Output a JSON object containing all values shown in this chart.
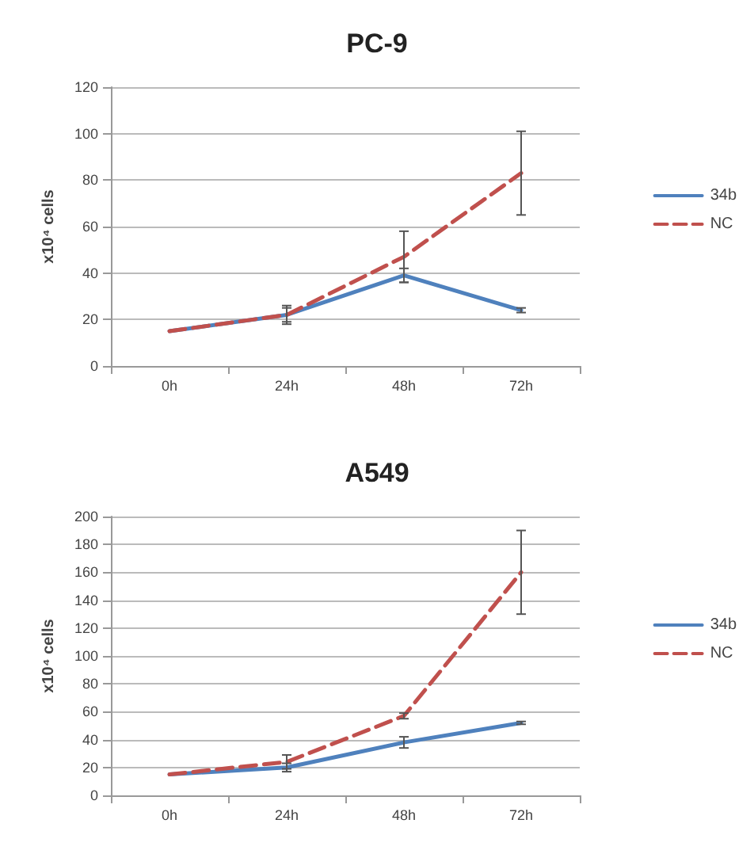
{
  "chart_data": [
    {
      "type": "line",
      "title": "PC-9",
      "ylabel": "x10⁴ cells",
      "categories": [
        "0h",
        "24h",
        "48h",
        "72h"
      ],
      "ylim": [
        0,
        120
      ],
      "yticks": [
        0,
        20,
        40,
        60,
        80,
        100,
        120
      ],
      "grid": "y",
      "legend": "right",
      "marker": "none",
      "series": [
        {
          "name": "34b",
          "color": "#4f81bd",
          "line_style": "solid",
          "values": [
            15,
            22,
            39,
            24
          ],
          "errors": [
            null,
            3,
            3,
            1
          ]
        },
        {
          "name": "NC",
          "color": "#c0504d",
          "line_style": "dashed",
          "values": [
            15,
            22,
            47,
            83
          ],
          "errors": [
            null,
            4,
            11,
            18
          ]
        }
      ]
    },
    {
      "type": "line",
      "title": "A549",
      "ylabel": "x10⁴ cells",
      "categories": [
        "0h",
        "24h",
        "48h",
        "72h"
      ],
      "ylim": [
        0,
        200
      ],
      "yticks": [
        0,
        20,
        40,
        60,
        80,
        100,
        120,
        140,
        160,
        180,
        200
      ],
      "grid": "y",
      "legend": "right",
      "marker": "none",
      "series": [
        {
          "name": "34b",
          "color": "#4f81bd",
          "line_style": "solid",
          "values": [
            15,
            20,
            38,
            52
          ],
          "errors": [
            null,
            3,
            4,
            1
          ]
        },
        {
          "name": "NC",
          "color": "#c0504d",
          "line_style": "dashed",
          "values": [
            15,
            24,
            57,
            160
          ],
          "errors": [
            null,
            5,
            2,
            30
          ]
        }
      ]
    }
  ]
}
